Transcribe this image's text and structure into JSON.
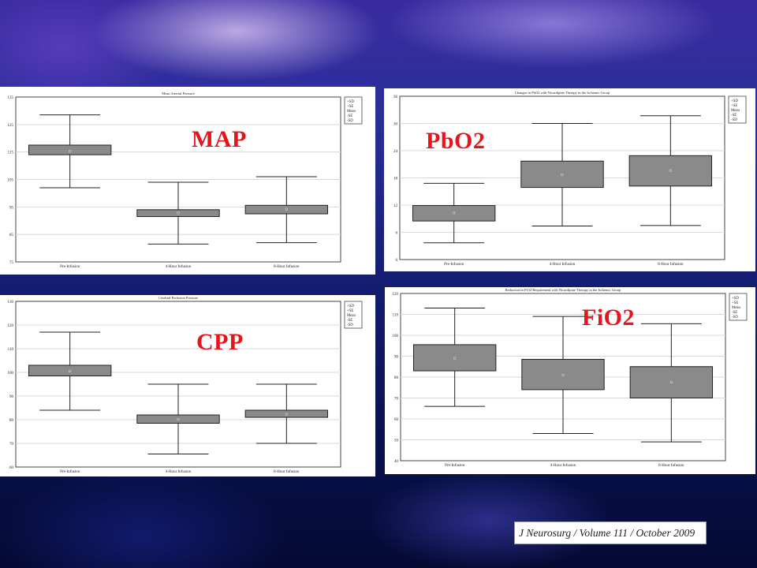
{
  "labels": {
    "map": "MAP",
    "pbo2": "PbO2",
    "cpp": "CPP",
    "fio2": "FiO2"
  },
  "citation": "J Neurosurg / Volume 111 / October 2009",
  "colors": {
    "label_red": "#e8141b",
    "box_fill": "#8a8a8a",
    "grid": "#d8d8d8"
  },
  "chart_data": [
    {
      "id": "map",
      "type": "box",
      "title": "Mean Arterial Pressure",
      "categories": [
        "Pre-Infusion",
        "4-Hour Infusion",
        "8-Hour Infusion"
      ],
      "ylim": [
        75,
        135
      ],
      "yticks": [
        75,
        85,
        95,
        105,
        115,
        125,
        135
      ],
      "legend": [
        "+SD",
        "+SE",
        "Mean",
        "-SE",
        "-SD"
      ],
      "legend_position": "right",
      "grid": true,
      "boxes": [
        {
          "mean": 115.3,
          "se_low": 114,
          "se_high": 117.5,
          "sd_low": 102,
          "sd_high": 128.5
        },
        {
          "mean": 92.8,
          "se_low": 91.5,
          "se_high": 94,
          "sd_low": 81.5,
          "sd_high": 104
        },
        {
          "mean": 94.2,
          "se_low": 92.5,
          "se_high": 95.6,
          "sd_low": 82,
          "sd_high": 106
        }
      ]
    },
    {
      "id": "pbo2",
      "type": "box",
      "title": "Changes in PbO2 with Nicardipine Therapy in the Ischemic Group",
      "categories": [
        "Pre-Infusion",
        "4-Hour Infusion",
        "8-Hour Infusion"
      ],
      "ylim": [
        0,
        36
      ],
      "yticks": [
        0,
        6,
        12,
        18,
        24,
        30,
        36
      ],
      "legend": [
        "+SD",
        "+SE",
        "Mean",
        "-SE",
        "-SD"
      ],
      "legend_position": "right",
      "grid": true,
      "boxes": [
        {
          "mean": 10.3,
          "se_low": 8.5,
          "se_high": 11.9,
          "sd_low": 3.7,
          "sd_high": 16.8
        },
        {
          "mean": 18.7,
          "se_low": 15.9,
          "se_high": 21.7,
          "sd_low": 7.4,
          "sd_high": 30
        },
        {
          "mean": 19.6,
          "se_low": 16.2,
          "se_high": 22.9,
          "sd_low": 7.5,
          "sd_high": 31.7
        }
      ]
    },
    {
      "id": "cpp",
      "type": "box",
      "title": "Cerebral Perfusion Pressure",
      "categories": [
        "Pre-Infusion",
        "4-Hour Infusion",
        "8-Hour Infusion"
      ],
      "ylim": [
        60,
        130
      ],
      "yticks": [
        60,
        70,
        80,
        90,
        100,
        110,
        120,
        130
      ],
      "legend": [
        "+SD",
        "+SE",
        "Mean",
        "-SE",
        "-SD"
      ],
      "legend_position": "right",
      "grid": true,
      "boxes": [
        {
          "mean": 100.5,
          "se_low": 98.5,
          "se_high": 103,
          "sd_low": 84,
          "sd_high": 117
        },
        {
          "mean": 80.2,
          "se_low": 78.5,
          "se_high": 82,
          "sd_low": 65.5,
          "sd_high": 95
        },
        {
          "mean": 82.3,
          "se_low": 81,
          "se_high": 84,
          "sd_low": 70,
          "sd_high": 95
        }
      ]
    },
    {
      "id": "fio2",
      "type": "box",
      "title": "Reduction in FiO2 Requirement with Nicardipine Therapy in the Ischemic Group",
      "categories": [
        "Pre-Infusion",
        "4-Hour Infusion",
        "8-Hour Infusion"
      ],
      "ylim": [
        40,
        120
      ],
      "yticks": [
        40,
        50,
        60,
        70,
        80,
        90,
        100,
        110,
        120
      ],
      "legend": [
        "+SD",
        "+SE",
        "Mean",
        "-SE",
        "-SD"
      ],
      "legend_position": "right",
      "grid": true,
      "boxes": [
        {
          "mean": 89,
          "se_low": 83,
          "se_high": 95.5,
          "sd_low": 66,
          "sd_high": 113
        },
        {
          "mean": 81,
          "se_low": 74,
          "se_high": 88.5,
          "sd_low": 53,
          "sd_high": 109
        },
        {
          "mean": 77.5,
          "se_low": 70,
          "se_high": 85,
          "sd_low": 49,
          "sd_high": 105.5
        }
      ]
    }
  ]
}
